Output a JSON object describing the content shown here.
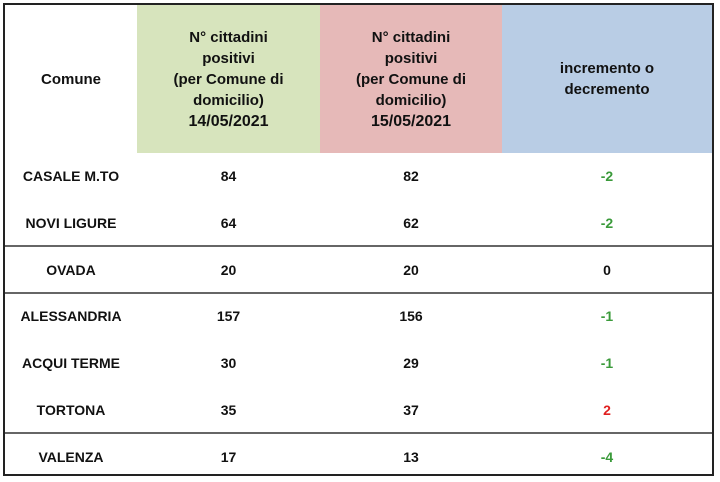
{
  "table": {
    "header": [
      [
        "Comune"
      ],
      [
        "N° cittadini",
        "positivi",
        "(per Comune di",
        "domicilio)",
        "14/05/2021"
      ],
      [
        "N° cittadini",
        "positivi",
        "(per Comune di",
        "domicilio)",
        "15/05/2021"
      ],
      [
        "incremento o",
        "decremento"
      ]
    ],
    "groups": [
      [
        [
          "CASALE M.TO",
          84,
          82,
          -2
        ],
        [
          "NOVI LIGURE",
          64,
          62,
          -2
        ]
      ],
      [
        [
          "OVADA",
          20,
          20,
          0
        ]
      ],
      [
        [
          "ALESSANDRIA",
          157,
          156,
          -1
        ],
        [
          "ACQUI TERME",
          30,
          29,
          -1
        ],
        [
          "TORTONA",
          35,
          37,
          2
        ]
      ],
      [
        [
          "VALENZA",
          17,
          13,
          -4
        ]
      ]
    ]
  }
}
